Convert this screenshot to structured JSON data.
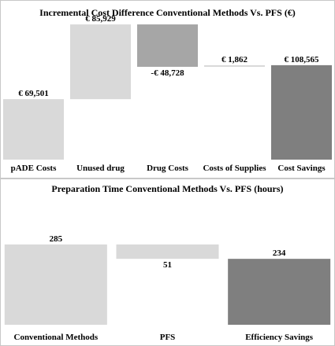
{
  "chart_data": [
    {
      "type": "bar",
      "subtype": "waterfall",
      "title": "Incremental Cost Difference Conventional Methods Vs. PFS (€)",
      "categories": [
        "pADE Costs",
        "Unused drug",
        "Drug Costs",
        "Costs of Supplies",
        "Cost Savings"
      ],
      "values": [
        69501,
        85929,
        -48728,
        1862,
        108565
      ],
      "data_labels": [
        "€ 69,501",
        "€ 85,929",
        "-€ 48,728",
        "€ 1,862",
        "€ 108,565"
      ],
      "colors": [
        "#d9d9d9",
        "#d9d9d9",
        "#a6a6a6",
        "#d9d9d9",
        "#7f7f7f"
      ],
      "ylim": [
        0,
        160000
      ],
      "grid": false
    },
    {
      "type": "bar",
      "subtype": "waterfall",
      "title": "Preparation Time Conventional Methods Vs. PFS (hours)",
      "categories": [
        "Conventional Methods",
        "PFS",
        "Efficiency Savings"
      ],
      "values": [
        285,
        -51,
        234
      ],
      "data_labels": [
        "285",
        "51",
        "234"
      ],
      "colors": [
        "#d9d9d9",
        "#d9d9d9",
        "#7f7f7f"
      ],
      "ylim": [
        0,
        480
      ],
      "grid": false
    }
  ]
}
